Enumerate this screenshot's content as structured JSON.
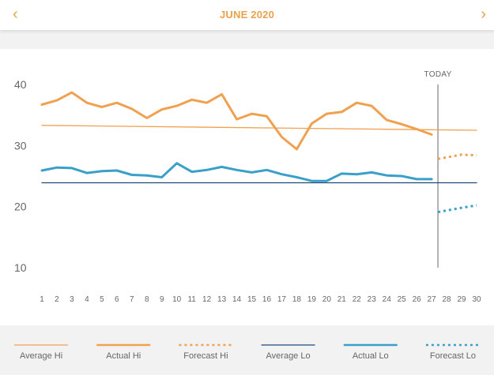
{
  "header": {
    "title": "JUNE 2020",
    "prev_icon": "chevron-left-icon",
    "next_icon": "chevron-right-icon",
    "prev_glyph": "‹",
    "next_glyph": "›"
  },
  "colors": {
    "accent": "#e8a24a",
    "hi": "#f0a150",
    "lo": "#3aa0c8",
    "avg_lo": "#1d4a78",
    "today_line": "#999999",
    "tick": "#666666"
  },
  "today_label": "TODAY",
  "chart_data": {
    "type": "line",
    "x_ticks": [
      1,
      2,
      3,
      4,
      5,
      6,
      7,
      8,
      9,
      10,
      11,
      12,
      13,
      14,
      15,
      16,
      17,
      18,
      19,
      20,
      21,
      22,
      23,
      24,
      25,
      26,
      27,
      28,
      29,
      30
    ],
    "y_ticks": [
      10,
      20,
      30,
      40
    ],
    "ylim": [
      10,
      40
    ],
    "xlim": [
      1,
      30
    ],
    "today": 28,
    "series": [
      {
        "name": "Average Hi",
        "style": "thin",
        "x": [
          1,
          30
        ],
        "values": [
          33.3,
          32.5
        ]
      },
      {
        "name": "Actual Hi",
        "style": "solid",
        "x": [
          1,
          2,
          3,
          4,
          5,
          6,
          7,
          8,
          9,
          10,
          11,
          12,
          13,
          14,
          15,
          16,
          17,
          18,
          19,
          20,
          21,
          22,
          23,
          24,
          25,
          26,
          27
        ],
        "values": [
          36.7,
          37.4,
          38.7,
          37.0,
          36.3,
          37.0,
          36.0,
          34.5,
          35.9,
          36.5,
          37.5,
          37.0,
          38.4,
          34.3,
          35.2,
          34.8,
          31.4,
          29.4,
          33.6,
          35.2,
          35.5,
          37.0,
          36.5,
          34.2,
          33.5,
          32.7,
          31.8
        ]
      },
      {
        "name": "Forecast Hi",
        "style": "dotted",
        "x": [
          28,
          29,
          30
        ],
        "values": [
          27.8,
          28.5,
          28.4
        ]
      },
      {
        "name": "Average Lo",
        "style": "thin",
        "x": [
          1,
          30
        ],
        "values": [
          23.9,
          23.9
        ]
      },
      {
        "name": "Actual Lo",
        "style": "solid",
        "x": [
          1,
          2,
          3,
          4,
          5,
          6,
          7,
          8,
          9,
          10,
          11,
          12,
          13,
          14,
          15,
          16,
          17,
          18,
          19,
          20,
          21,
          22,
          23,
          24,
          25,
          26,
          27
        ],
        "values": [
          25.9,
          26.4,
          26.3,
          25.5,
          25.8,
          25.9,
          25.2,
          25.1,
          24.8,
          27.1,
          25.7,
          26.0,
          26.5,
          26.0,
          25.6,
          26.0,
          25.3,
          24.8,
          24.2,
          24.2,
          25.4,
          25.3,
          25.6,
          25.1,
          25.0,
          24.5,
          24.5
        ]
      },
      {
        "name": "Forecast Lo",
        "style": "dotted",
        "x": [
          28,
          29,
          30
        ],
        "values": [
          19.1,
          19.8,
          20.2
        ]
      }
    ]
  },
  "legend": [
    {
      "label": "Average Hi",
      "series": 0
    },
    {
      "label": "Actual Hi",
      "series": 1
    },
    {
      "label": "Forecast Hi",
      "series": 2
    },
    {
      "label": "Average Lo",
      "series": 3
    },
    {
      "label": "Actual Lo",
      "series": 4
    },
    {
      "label": "Forecast Lo",
      "series": 5
    }
  ]
}
